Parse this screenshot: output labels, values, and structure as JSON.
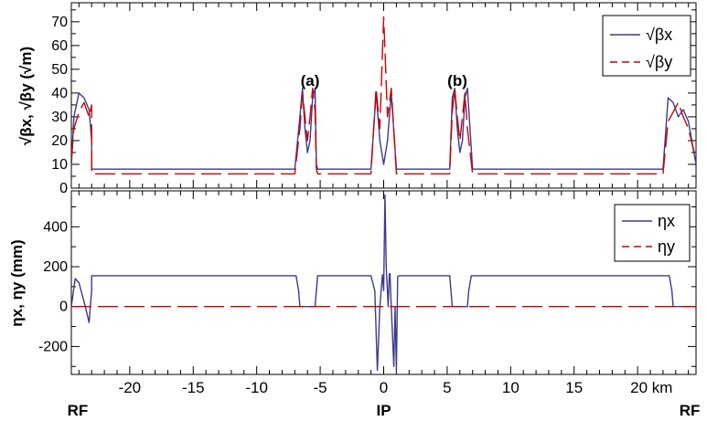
{
  "chart_data": [
    {
      "type": "line",
      "ylabel": "√βx, √βy (√m)",
      "ylim": [
        0,
        78
      ],
      "yticks": [
        0,
        10,
        20,
        30,
        40,
        50,
        60,
        70
      ],
      "xlim": [
        -24.6,
        24.6
      ],
      "xticks": [
        -20,
        -15,
        -10,
        -5,
        0,
        5,
        10,
        15,
        20
      ],
      "legend": {
        "position": "top-right",
        "entries": [
          "√βx",
          "√βy"
        ]
      },
      "annotations": [
        {
          "text": "(a)",
          "x": -5.8,
          "y": 43
        },
        {
          "text": "(b)",
          "x": 5.8,
          "y": 43
        }
      ],
      "series": [
        {
          "name": "√βx",
          "color": "#3b3b8c",
          "style": "solid",
          "x": [
            -24.6,
            -24.4,
            -24.0,
            -23.6,
            -23.2,
            -23.0,
            -23.0,
            -22.0,
            -10.0,
            -7.0,
            -6.6,
            -6.4,
            -6.2,
            -6.0,
            -5.8,
            -5.6,
            -5.4,
            -5.3,
            -5.2,
            -1.0,
            -0.6,
            -0.3,
            0.0,
            0.3,
            0.6,
            1.0,
            5.2,
            5.4,
            5.6,
            5.8,
            6.0,
            6.2,
            6.4,
            6.6,
            7.0,
            22.0,
            22.4,
            22.8,
            23.2,
            23.6,
            24.0,
            24.6
          ],
          "y": [
            9,
            30,
            40,
            38,
            33,
            20,
            8,
            8,
            8,
            8,
            30,
            42,
            25,
            15,
            20,
            38,
            42,
            10,
            8,
            8,
            40,
            20,
            10,
            20,
            40,
            8,
            8,
            38,
            42,
            25,
            15,
            20,
            38,
            42,
            8,
            8,
            38,
            36,
            30,
            33,
            28,
            10
          ]
        },
        {
          "name": "√βy",
          "color": "#cc0000",
          "style": "dashed",
          "x": [
            -24.6,
            -24.4,
            -24.0,
            -23.6,
            -23.2,
            -23.0,
            -23.0,
            -22.0,
            -10.0,
            -7.0,
            -6.6,
            -6.4,
            -6.2,
            -6.0,
            -5.8,
            -5.6,
            -5.4,
            -5.3,
            -5.2,
            -1.0,
            -0.6,
            -0.3,
            0.0,
            0.3,
            0.6,
            1.0,
            5.2,
            5.4,
            5.6,
            5.8,
            6.0,
            6.2,
            6.4,
            6.6,
            7.0,
            22.0,
            22.4,
            22.8,
            23.2,
            23.6,
            24.0,
            24.6
          ],
          "y": [
            12,
            25,
            32,
            36,
            30,
            35,
            6,
            6,
            6,
            6,
            25,
            40,
            30,
            20,
            30,
            42,
            32,
            8,
            6,
            6,
            42,
            25,
            72,
            30,
            42,
            6,
            6,
            32,
            42,
            30,
            20,
            30,
            40,
            25,
            6,
            6,
            28,
            32,
            36,
            30,
            25,
            12
          ]
        }
      ]
    },
    {
      "type": "line",
      "ylabel": "ηx, ηy (mm)",
      "ylim": [
        -340,
        580
      ],
      "yticks": [
        -200,
        0,
        200,
        400
      ],
      "xlim": [
        -24.6,
        24.6
      ],
      "xticks": [
        -20,
        -15,
        -10,
        -5,
        0,
        5,
        10,
        15,
        20
      ],
      "xticklabels": [
        "-20",
        "-15",
        "-10",
        "-5",
        "0",
        "5",
        "10",
        "15",
        "20 km"
      ],
      "legend": {
        "position": "top-right",
        "entries": [
          "ηx",
          "ηy"
        ]
      },
      "bottom_labels": [
        {
          "text": "RF",
          "x": -24.1
        },
        {
          "text": "IP",
          "x": 0
        },
        {
          "text": "RF",
          "x": 24.1
        }
      ],
      "series": [
        {
          "name": "ηx",
          "color": "#3b3b8c",
          "style": "solid",
          "x": [
            -24.6,
            -24.3,
            -24.0,
            -23.5,
            -23.2,
            -23.0,
            -23.0,
            -6.9,
            -6.7,
            -6.6,
            -5.4,
            -5.3,
            -5.2,
            -1.0,
            -0.7,
            -0.5,
            -0.3,
            -0.1,
            0.0,
            0.1,
            0.2,
            0.35,
            0.45,
            0.5,
            0.6,
            0.8,
            0.9,
            1.0,
            1.1,
            1.2,
            5.2,
            5.4,
            6.6,
            6.7,
            6.9,
            22.5,
            22.7,
            22.8,
            24.6
          ],
          "y": [
            0,
            140,
            120,
            0,
            -80,
            80,
            155,
            155,
            80,
            0,
            0,
            80,
            155,
            155,
            80,
            -320,
            0,
            160,
            80,
            560,
            200,
            0,
            165,
            165,
            0,
            -300,
            0,
            -320,
            150,
            155,
            155,
            0,
            0,
            80,
            155,
            155,
            80,
            0,
            0
          ]
        },
        {
          "name": "ηy",
          "color": "#cc0000",
          "style": "dashed",
          "x": [
            -24.6,
            24.6
          ],
          "y": [
            0,
            0
          ]
        }
      ]
    }
  ]
}
